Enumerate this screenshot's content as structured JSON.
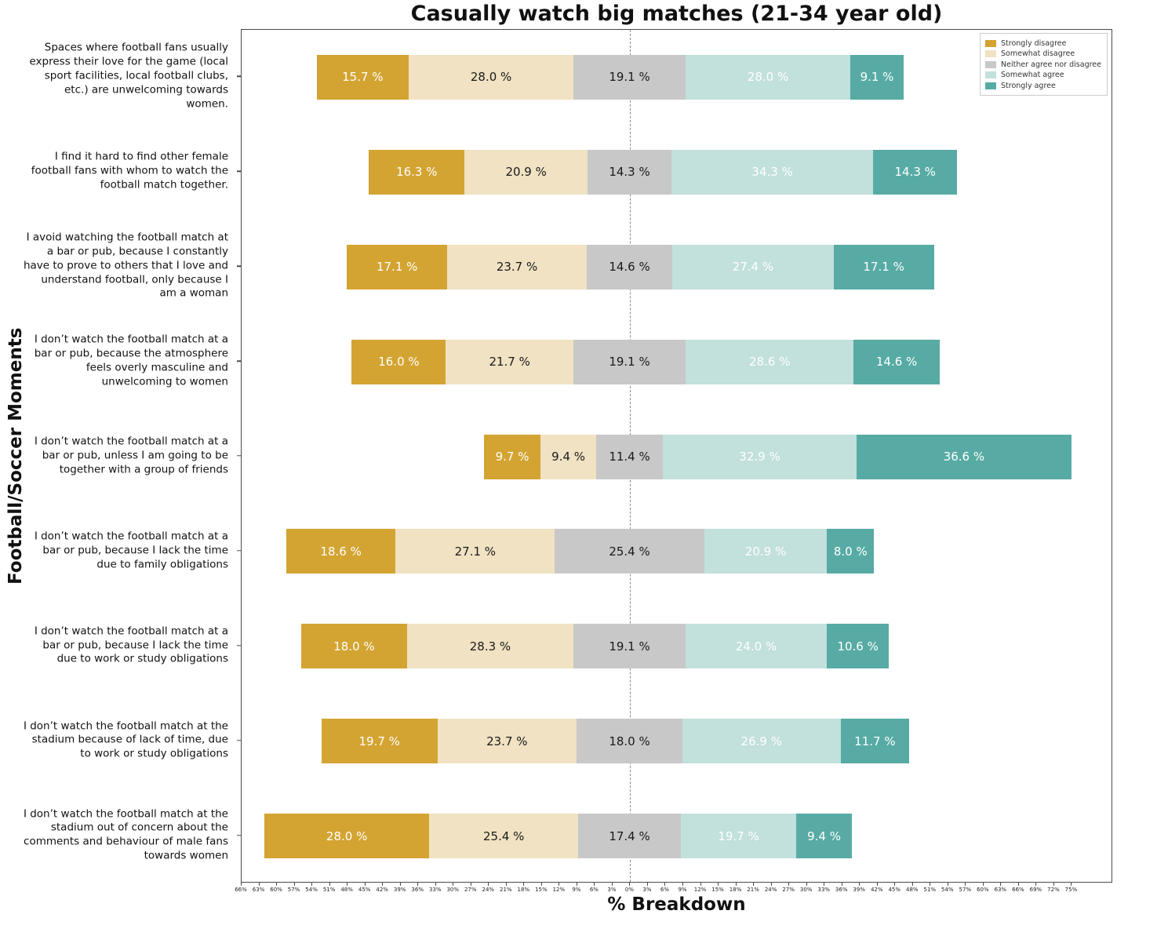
{
  "chart_data": {
    "type": "bar",
    "variant": "diverging-stacked-horizontal-likert",
    "title": "Casually watch big matches (21-34 year old)",
    "xlabel": "% Breakdown",
    "ylabel": "Football/Soccer Moments",
    "grid": false,
    "legend_position": "top-right-inside",
    "axis": {
      "xmin": -66,
      "xmax": 82,
      "zero_line": 0,
      "tick_values": [
        -66,
        -63,
        -60,
        -57,
        -54,
        -51,
        -48,
        -45,
        -42,
        -39,
        -36,
        -33,
        -30,
        -27,
        -24,
        -21,
        -18,
        -15,
        -12,
        -9,
        -6,
        -3,
        0,
        3,
        6,
        9,
        12,
        15,
        18,
        21,
        24,
        27,
        30,
        33,
        36,
        39,
        42,
        45,
        48,
        51,
        54,
        57,
        60,
        63,
        66,
        69,
        72,
        75
      ],
      "tick_labels": [
        "66%",
        "63%",
        "60%",
        "57%",
        "54%",
        "51%",
        "48%",
        "45%",
        "42%",
        "39%",
        "36%",
        "33%",
        "30%",
        "27%",
        "24%",
        "21%",
        "18%",
        "15%",
        "12%",
        "9%",
        "6%",
        "3%",
        "0%",
        "3%",
        "6%",
        "9%",
        "12%",
        "15%",
        "18%",
        "21%",
        "24%",
        "27%",
        "30%",
        "33%",
        "36%",
        "39%",
        "42%",
        "45%",
        "48%",
        "51%",
        "54%",
        "57%",
        "60%",
        "63%",
        "66%",
        "69%",
        "72%",
        "75%"
      ]
    },
    "legend": [
      {
        "label": "Strongly disagree",
        "color": "#d3a432",
        "text_color": "#ffffff"
      },
      {
        "label": "Somewhat disagree",
        "color": "#f0e2c2",
        "text_color": "#1a1a1a"
      },
      {
        "label": "Neither agree nor disagree",
        "color": "#c8c8c8",
        "text_color": "#1a1a1a"
      },
      {
        "label": "Somewhat agree",
        "color": "#c2e0dc",
        "text_color": "#ffffff"
      },
      {
        "label": "Strongly agree",
        "color": "#57aba4",
        "text_color": "#ffffff"
      }
    ],
    "categories": [
      "Spaces where football fans usually express their love for the game (local sport facilities, local football clubs, etc.) are unwelcoming towards women.",
      "I find it hard to find other female football fans with whom to watch the football match together.",
      "I avoid watching the football match at a bar or pub, because I constantly have to prove to others that I love and understand football, only because I am a woman",
      "I don’t watch the football match at a bar or pub, because the atmosphere feels overly masculine and unwelcoming to women",
      "I don’t watch the football match at a bar or pub, unless I am going to be together with a group of friends",
      "I don’t watch the football match at a bar or pub, because I lack the time due to family obligations",
      "I don’t watch the football match at a bar or pub, because I lack the time due to work or study obligations",
      "I don’t watch the football match at the stadium because of lack of time, due to work or study obligations",
      "I don’t watch the football match at the stadium out of concern about the comments and behaviour of male fans towards women"
    ],
    "series": [
      {
        "name": "Strongly disagree",
        "values": [
          15.7,
          16.3,
          17.1,
          16.0,
          9.7,
          18.6,
          18.0,
          19.7,
          28.0
        ]
      },
      {
        "name": "Somewhat disagree",
        "values": [
          28.0,
          20.9,
          23.7,
          21.7,
          9.4,
          27.1,
          28.3,
          23.7,
          25.4
        ]
      },
      {
        "name": "Neither agree nor disagree",
        "values": [
          19.1,
          14.3,
          14.6,
          19.1,
          11.4,
          25.4,
          19.1,
          18.0,
          17.4
        ]
      },
      {
        "name": "Somewhat agree",
        "values": [
          28.0,
          34.3,
          27.4,
          28.6,
          32.9,
          20.9,
          24.0,
          26.9,
          19.7
        ]
      },
      {
        "name": "Strongly agree",
        "values": [
          9.1,
          14.3,
          17.1,
          14.6,
          36.6,
          8.0,
          10.6,
          11.7,
          9.4
        ]
      }
    ],
    "value_label_format": "{value} %"
  }
}
